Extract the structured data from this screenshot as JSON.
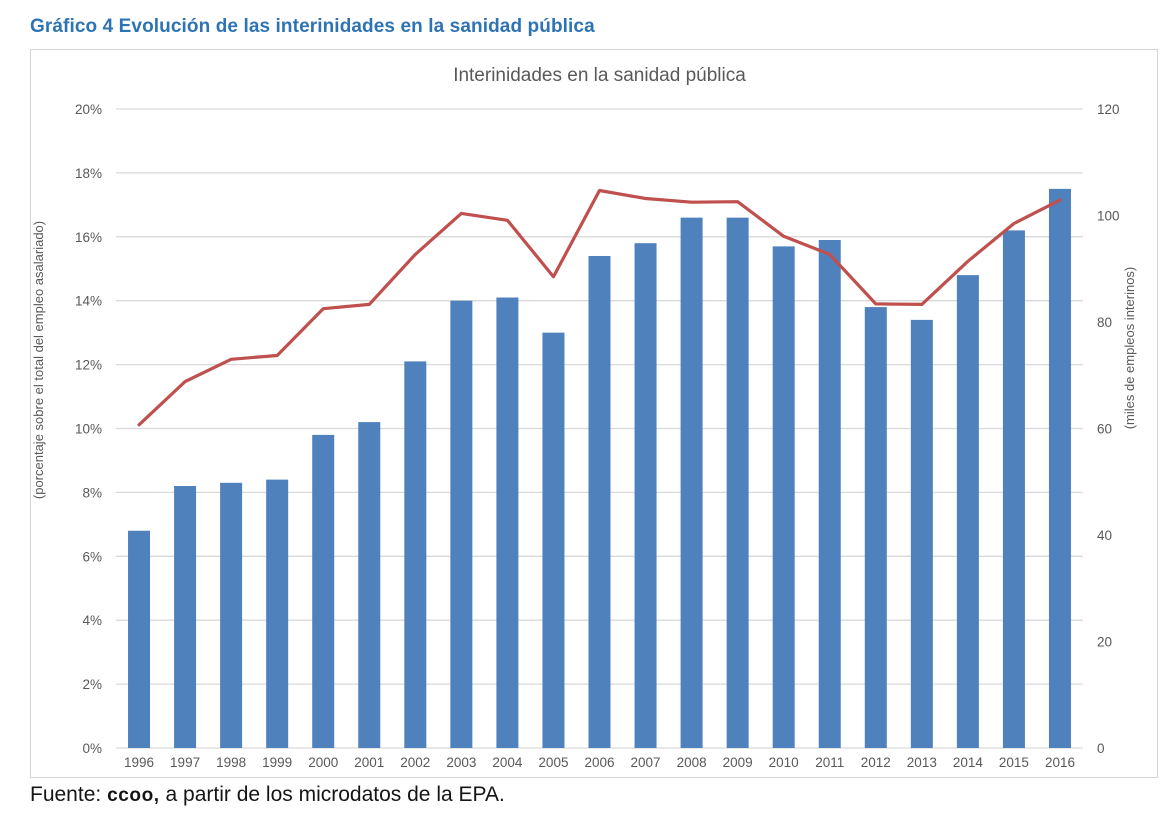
{
  "page": {
    "heading": "Gráfico 4 Evolución de las interinidades en la sanidad pública",
    "footer": {
      "prefix": "Fuente: ",
      "org": "ccoo,",
      "rest": "  a partir de los microdatos de la EPA."
    }
  },
  "chart_data": {
    "type": "bar",
    "subtype": "bar-and-line-dual-axis",
    "title": "Interinidades en la sanidad pública",
    "categories": [
      "1996",
      "1997",
      "1998",
      "1999",
      "2000",
      "2001",
      "2002",
      "2003",
      "2004",
      "2005",
      "2006",
      "2007",
      "2008",
      "2009",
      "2010",
      "2011",
      "2012",
      "2013",
      "2014",
      "2015",
      "2016"
    ],
    "series": [
      {
        "name": "porcentaje sobre el total del empleo asalariado",
        "type": "bar",
        "axis": "left",
        "color": "#4F81BD",
        "values": [
          6.8,
          8.2,
          8.3,
          8.4,
          9.8,
          10.2,
          12.1,
          14.0,
          14.1,
          13.0,
          15.4,
          15.8,
          16.6,
          16.6,
          15.7,
          15.9,
          13.8,
          13.4,
          14.8,
          16.2,
          17.5
        ]
      },
      {
        "name": "miles de empleos interinos",
        "type": "line",
        "axis": "right",
        "color": "#C0504D",
        "values": [
          60.7,
          68.8,
          73.0,
          73.7,
          82.5,
          83.3,
          92.7,
          100.4,
          99.1,
          88.5,
          104.7,
          103.2,
          102.5,
          102.6,
          96.1,
          92.7,
          83.4,
          83.3,
          91.4,
          98.5,
          102.9
        ]
      }
    ],
    "left_axis": {
      "label": "(porcentaje sobre el total del empleo asalariado)",
      "min": 0,
      "max": 20,
      "step": 2,
      "ticks": [
        "0%",
        "2%",
        "4%",
        "6%",
        "8%",
        "10%",
        "12%",
        "14%",
        "16%",
        "18%",
        "20%"
      ]
    },
    "right_axis": {
      "label": "(miles de empleos interinos)",
      "min": 0,
      "max": 120,
      "step": 20,
      "ticks": [
        "0",
        "20",
        "40",
        "60",
        "80",
        "100",
        "120"
      ]
    },
    "grid": true,
    "legend": "none"
  },
  "colors": {
    "heading": "#2E74B5",
    "chart_text": "#595959",
    "gridline": "#D9D9D9",
    "bar": "#4F81BD",
    "line": "#C0504D",
    "box_border": "#D6D6D6"
  }
}
